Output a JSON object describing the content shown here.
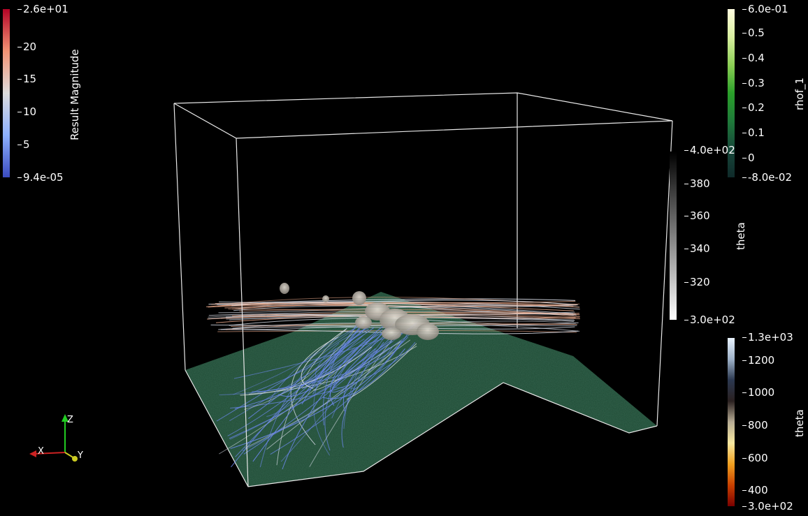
{
  "scalar_bars": {
    "result_magnitude": {
      "title": "Result Magnitude",
      "ticks": [
        "2.6e+01",
        "20",
        "15",
        "10",
        "5",
        "9.4e-05"
      ],
      "colors": [
        "#b40426",
        "#f29274",
        "#dddcdc",
        "#8db0fe",
        "#3b4cc0"
      ]
    },
    "rhof_1": {
      "title": "rhof_1",
      "ticks": [
        "6.0e-01",
        "0.5",
        "0.4",
        "0.3",
        "0.2",
        "0.1",
        "0",
        "-8.0e-02"
      ],
      "colors": [
        "#fffde0",
        "#d9efa0",
        "#8ccf55",
        "#2aa02a",
        "#1f7a3a",
        "#17483a",
        "#0f2a2a"
      ]
    },
    "theta_gray": {
      "title": "theta",
      "ticks": [
        "4.0e+02",
        "380",
        "360",
        "340",
        "320",
        "3.0e+02"
      ],
      "colors": [
        "#000000",
        "#555555",
        "#aaaaaa",
        "#ffffff"
      ]
    },
    "theta_heat": {
      "title": "theta",
      "ticks": [
        "1.3e+03",
        "1200",
        "1000",
        "800",
        "600",
        "400",
        "3.0e+02"
      ],
      "colors": [
        "#e9f3ff",
        "#9fb3c9",
        "#2b3850",
        "#2a2020",
        "#b8ad95",
        "#f7e8a0",
        "#f0a020",
        "#c84000",
        "#7a0000"
      ]
    }
  },
  "axes_triad": {
    "x_label": "X",
    "y_label": "Y",
    "z_label": "Z"
  },
  "colors": {
    "background": "#000000",
    "outline": "#e8e8e8",
    "terrain": "#1e4a34",
    "streamline_low": "#6a86e8",
    "streamline_mid": "#d8dde8",
    "streamline_high": "#e8a88a",
    "cloud": "#c9c2b8"
  }
}
